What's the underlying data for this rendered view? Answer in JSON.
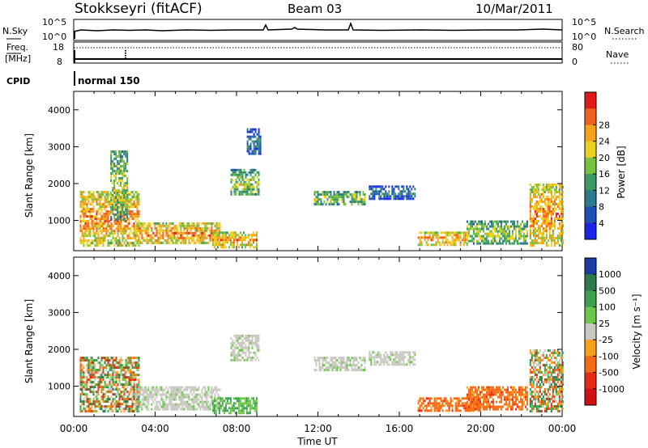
{
  "header": {
    "station": "Stokkseyri (fitACF)",
    "beam": "Beam 03",
    "date": "10/Mar/2011"
  },
  "noise_panel": {
    "left_label": "N.Sky",
    "right_label": "N.Search",
    "left_ticks": [
      "10^5",
      "10^0"
    ],
    "right_ticks": [
      "10^5",
      "10^0"
    ]
  },
  "freq_panel": {
    "left_label_top": "Freq.",
    "left_label_bottom": "[MHz]",
    "left_ticks": [
      "18",
      "8"
    ],
    "right_label": "Nave",
    "right_ticks": [
      "80",
      "0"
    ]
  },
  "cpid": {
    "label": "CPID",
    "program": "normal 150"
  },
  "chart_data": [
    {
      "type": "heatmap",
      "name": "power",
      "xlabel": "",
      "ylabel": "Slant Range [km]",
      "yticks": [
        "1000",
        "2000",
        "3000",
        "4000"
      ],
      "ylim": [
        180,
        4500
      ],
      "colorbar": {
        "label": "Power [dB]",
        "ticks": [
          "4",
          "8",
          "12",
          "16",
          "20",
          "24",
          "28"
        ],
        "colors": [
          "#1a24e6",
          "#1e4fb4",
          "#2d7a8c",
          "#3c9a62",
          "#78c040",
          "#e8d21e",
          "#f4a21a",
          "#f0601e",
          "#e01a1a"
        ]
      },
      "regions": [
        {
          "t0": 0.3,
          "t1": 3.2,
          "r0": 350,
          "r1": 1800,
          "level": "high"
        },
        {
          "t0": 1.8,
          "t1": 2.6,
          "r0": 1000,
          "r1": 2900,
          "level": "mid"
        },
        {
          "t0": 3.0,
          "t1": 7.2,
          "r0": 380,
          "r1": 950,
          "level": "high"
        },
        {
          "t0": 6.8,
          "t1": 9.0,
          "r0": 300,
          "r1": 700,
          "level": "high"
        },
        {
          "t0": 7.7,
          "t1": 9.1,
          "r0": 1700,
          "r1": 2400,
          "level": "mid"
        },
        {
          "t0": 8.5,
          "t1": 9.2,
          "r0": 2800,
          "r1": 3500,
          "level": "low"
        },
        {
          "t0": 11.8,
          "t1": 14.3,
          "r0": 1450,
          "r1": 1800,
          "level": "mid"
        },
        {
          "t0": 14.5,
          "t1": 16.8,
          "r0": 1600,
          "r1": 1950,
          "level": "low"
        },
        {
          "t0": 16.9,
          "t1": 19.3,
          "r0": 320,
          "r1": 700,
          "level": "high"
        },
        {
          "t0": 19.3,
          "t1": 22.3,
          "r0": 350,
          "r1": 1000,
          "level": "mid"
        },
        {
          "t0": 22.4,
          "t1": 24.0,
          "r0": 350,
          "r1": 2000,
          "level": "high"
        }
      ]
    },
    {
      "type": "heatmap",
      "name": "velocity",
      "xlabel": "Time UT",
      "ylabel": "Slant Range [km]",
      "xticks": [
        "00:00",
        "04:00",
        "08:00",
        "12:00",
        "16:00",
        "20:00",
        "00:00"
      ],
      "yticks": [
        "1000",
        "2000",
        "3000",
        "4000"
      ],
      "ylim": [
        180,
        4500
      ],
      "colorbar": {
        "label": "Velocity [m s⁻¹]",
        "ticks": [
          "1000",
          "500",
          "100",
          "25",
          "-25",
          "-100",
          "-500",
          "-1000"
        ],
        "colors": [
          "#1c3ca0",
          "#2f7a4a",
          "#3ca050",
          "#6cc84a",
          "#c8c8c0",
          "#f8a01a",
          "#f46a14",
          "#e82a14",
          "#d01010"
        ]
      },
      "regions": [
        {
          "t0": 0.3,
          "t1": 3.2,
          "r0": 350,
          "r1": 1800,
          "level": "mixed"
        },
        {
          "t0": 3.0,
          "t1": 7.2,
          "r0": 380,
          "r1": 1000,
          "level": "gray"
        },
        {
          "t0": 6.8,
          "t1": 9.0,
          "r0": 300,
          "r1": 700,
          "level": "green"
        },
        {
          "t0": 7.7,
          "t1": 9.1,
          "r0": 1700,
          "r1": 2400,
          "level": "gray"
        },
        {
          "t0": 11.8,
          "t1": 14.3,
          "r0": 1450,
          "r1": 1800,
          "level": "gray"
        },
        {
          "t0": 14.5,
          "t1": 16.8,
          "r0": 1600,
          "r1": 1950,
          "level": "gray"
        },
        {
          "t0": 16.9,
          "t1": 20.0,
          "r0": 320,
          "r1": 700,
          "level": "orange"
        },
        {
          "t0": 19.3,
          "t1": 22.3,
          "r0": 350,
          "r1": 1000,
          "level": "orange"
        },
        {
          "t0": 22.4,
          "t1": 24.0,
          "r0": 350,
          "r1": 2000,
          "level": "mixed"
        }
      ]
    }
  ]
}
